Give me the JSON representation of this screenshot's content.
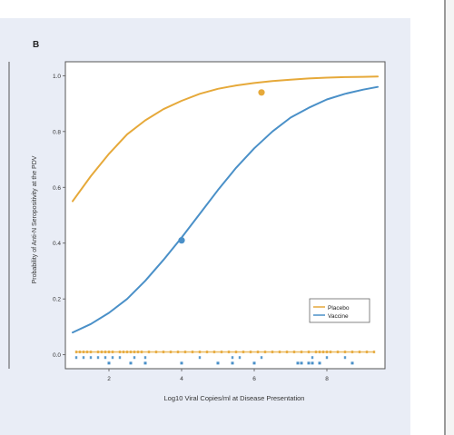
{
  "chart_data": {
    "type": "line",
    "panel_label": "B",
    "xlabel": "Log10 Viral Copies/ml at Disease Presentation",
    "ylabel": "Probability of Anti-N Seropositivity at the PDV",
    "xlim": [
      0.8,
      9.6
    ],
    "ylim": [
      -0.05,
      1.05
    ],
    "x_ticks": [
      2,
      4,
      6,
      8
    ],
    "x_tick_labels": [
      "2",
      "4",
      "6",
      "8"
    ],
    "y_ticks": [
      0.0,
      0.2,
      0.4,
      0.6,
      0.8,
      1.0
    ],
    "y_tick_labels": [
      "0.0",
      "0.2",
      "0.4",
      "0.6",
      "0.8",
      "1.0"
    ],
    "grid": false,
    "legend_position": "bottom-right",
    "series": [
      {
        "name": "Placebo",
        "color": "#e6a93a",
        "curve": {
          "x": [
            1.0,
            1.5,
            2.0,
            2.5,
            3.0,
            3.5,
            4.0,
            4.5,
            5.0,
            5.5,
            6.0,
            6.5,
            7.0,
            7.5,
            8.0,
            8.5,
            9.0,
            9.4
          ],
          "y": [
            0.55,
            0.64,
            0.72,
            0.79,
            0.84,
            0.88,
            0.91,
            0.935,
            0.953,
            0.965,
            0.974,
            0.981,
            0.986,
            0.99,
            0.993,
            0.995,
            0.996,
            0.997
          ]
        },
        "marker": {
          "x": 6.2,
          "y": 0.94
        },
        "rug_y": 0.01,
        "rug_x": [
          1.1,
          1.2,
          1.3,
          1.4,
          1.5,
          1.7,
          1.8,
          1.9,
          2.0,
          2.1,
          2.3,
          2.4,
          2.5,
          2.6,
          2.7,
          2.8,
          2.9,
          3.1,
          3.3,
          3.5,
          3.7,
          3.9,
          4.1,
          4.3,
          4.5,
          4.7,
          4.9,
          5.1,
          5.3,
          5.5,
          5.7,
          5.9,
          6.1,
          6.3,
          6.5,
          6.7,
          6.9,
          7.1,
          7.3,
          7.5,
          7.7,
          7.8,
          7.9,
          8.0,
          8.1,
          8.3,
          8.5,
          8.7,
          8.9,
          9.1,
          9.3
        ]
      },
      {
        "name": "Vaccine",
        "color": "#4a90c8",
        "curve": {
          "x": [
            1.0,
            1.5,
            2.0,
            2.5,
            3.0,
            3.5,
            4.0,
            4.5,
            5.0,
            5.5,
            6.0,
            6.5,
            7.0,
            7.5,
            8.0,
            8.5,
            9.0,
            9.4
          ],
          "y": [
            0.08,
            0.11,
            0.15,
            0.2,
            0.265,
            0.34,
            0.42,
            0.505,
            0.59,
            0.67,
            0.74,
            0.8,
            0.85,
            0.885,
            0.915,
            0.935,
            0.95,
            0.96
          ]
        },
        "marker": {
          "x": 4.0,
          "y": 0.41
        },
        "rug_y": -0.01,
        "rug_x": [
          1.1,
          1.3,
          1.5,
          1.7,
          1.9,
          2.1,
          2.3,
          2.7,
          3.0,
          4.5,
          5.4,
          5.6,
          6.2,
          7.6,
          8.0,
          8.5
        ],
        "rug_low_y": -0.03,
        "rug_low_x": [
          2.0,
          2.6,
          3.0,
          4.0,
          5.0,
          5.4,
          6.0,
          7.2,
          7.3,
          7.5,
          7.6,
          7.8,
          8.7
        ]
      }
    ]
  }
}
